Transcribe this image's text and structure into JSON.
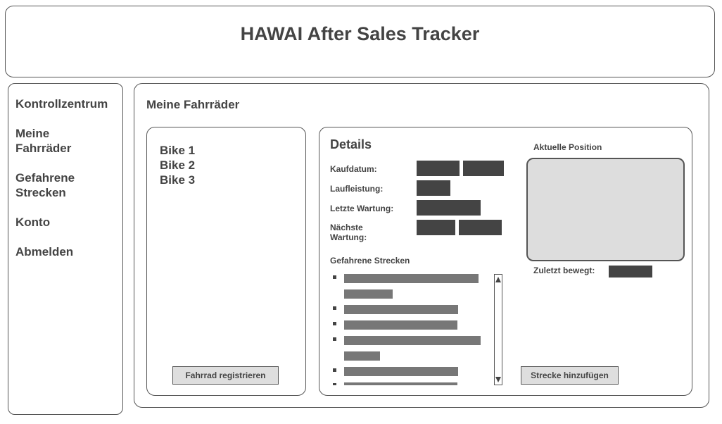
{
  "header": {
    "title": "HAWAI After Sales Tracker"
  },
  "sidebar": {
    "items": [
      {
        "label": "Kontrollzentrum"
      },
      {
        "label": "Meine Fahrräder"
      },
      {
        "label": "Gefahrene Strecken"
      },
      {
        "label": "Konto"
      },
      {
        "label": "Abmelden"
      }
    ]
  },
  "main": {
    "title": "Meine Fahrräder",
    "bikes": [
      {
        "label": "Bike 1"
      },
      {
        "label": "Bike 2"
      },
      {
        "label": "Bike 3"
      }
    ],
    "register_button": "Fahrrad registrieren"
  },
  "details": {
    "title": "Details",
    "fields": {
      "purchase_date": "Kaufdatum:",
      "mileage": "Laufleistung:",
      "last_service": "Letzte Wartung:",
      "next_service": "Nächste Wartung:"
    },
    "routes_heading": "Gefahrene Strecken",
    "position_heading": "Aktuelle Position",
    "last_moved_label": "Zuletzt bewegt:",
    "add_route_button": "Strecke hinzufügen"
  },
  "colors": {
    "border": "#555555",
    "text": "#444444",
    "redaction": "#444444",
    "placeholder_bar": "#777777",
    "map_fill": "#dddddd",
    "button_fill": "#dedede"
  },
  "icons": {
    "scroll_up": "triangle-up-icon",
    "scroll_down": "triangle-down-icon"
  }
}
